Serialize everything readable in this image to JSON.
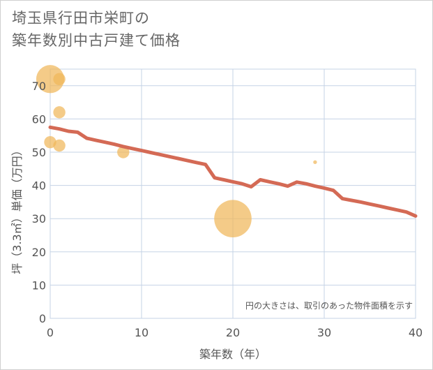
{
  "chart_data": {
    "type": "scatter+line",
    "title_line1": "埼玉県行田市栄町の",
    "title_line2": "築年数別中古戸建て価格",
    "xlabel": "築年数（年）",
    "ylabel": "坪（3.3㎡）単価（万円）",
    "xlim": [
      0,
      40
    ],
    "ylim": [
      0,
      75
    ],
    "xticks": [
      0,
      10,
      20,
      30,
      40
    ],
    "yticks": [
      0,
      10,
      20,
      30,
      40,
      50,
      60,
      70
    ],
    "grid": true,
    "note": "円の大きさは、取引のあった物件面積を示す",
    "colors": {
      "bubble": "#f0b75a",
      "line": "#d46a55",
      "grid": "#c5d3e6"
    },
    "scatter": [
      {
        "x": 0,
        "y": 72,
        "size": 3
      },
      {
        "x": 1,
        "y": 72,
        "size": 1.3
      },
      {
        "x": 1,
        "y": 62,
        "size": 1.3
      },
      {
        "x": 0,
        "y": 53,
        "size": 1.3
      },
      {
        "x": 1,
        "y": 52,
        "size": 1.3
      },
      {
        "x": 8,
        "y": 50,
        "size": 1.3
      },
      {
        "x": 20,
        "y": 30,
        "size": 4
      },
      {
        "x": 29,
        "y": 47,
        "size": 0.4
      }
    ],
    "trend": {
      "x": [
        0,
        1,
        2,
        3,
        4,
        5,
        6,
        7,
        8,
        9,
        10,
        11,
        12,
        13,
        14,
        15,
        16,
        17,
        18,
        19,
        20,
        21,
        22,
        23,
        24,
        25,
        26,
        27,
        28,
        29,
        30,
        31,
        32,
        33,
        34,
        35,
        36,
        37,
        38,
        39,
        40
      ],
      "y": [
        57.5,
        57,
        56.3,
        56,
        54.2,
        53.6,
        53,
        52.4,
        51.7,
        51.1,
        50.5,
        49.9,
        49.3,
        48.7,
        48.1,
        47.5,
        46.9,
        46.3,
        42.3,
        41.7,
        41.1,
        40.5,
        39.6,
        41.7,
        41.1,
        40.5,
        39.8,
        41,
        40.5,
        39.8,
        39.2,
        38.5,
        36,
        35.5,
        35,
        34.4,
        33.8,
        33.2,
        32.6,
        32,
        30.8
      ]
    }
  }
}
